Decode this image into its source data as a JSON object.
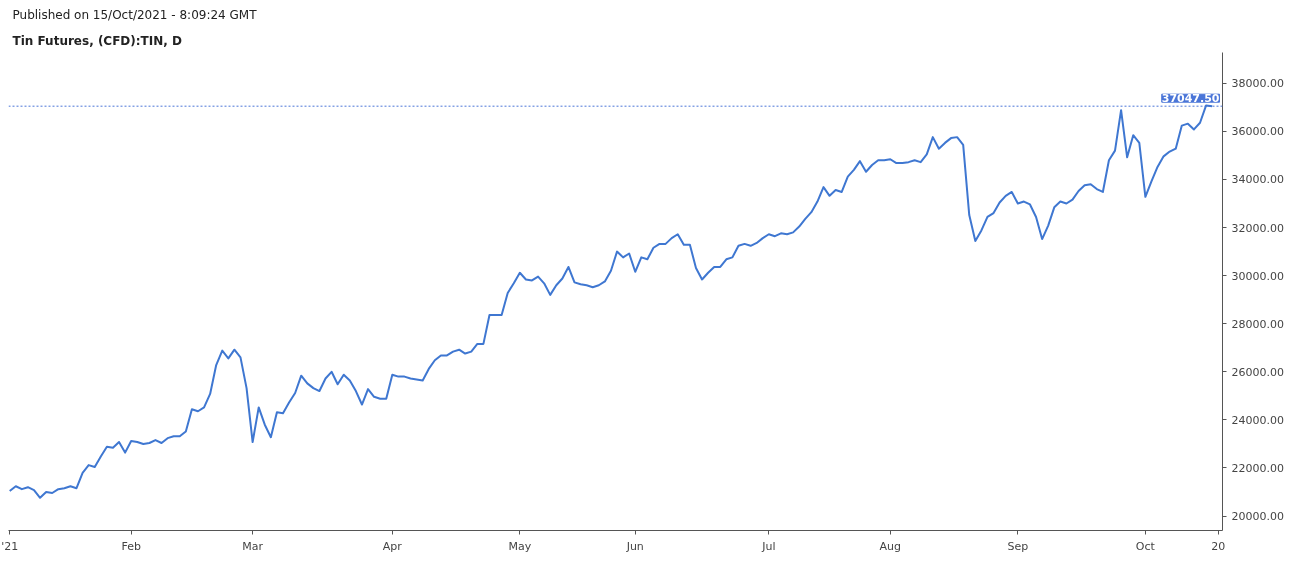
{
  "chart_data": {
    "type": "line",
    "title": "Tin Futures, (CFD):TIN, D",
    "subtitle": "Published on 15/Oct/2021 - 8:09:24 GMT",
    "categories": [
      "'21",
      null,
      null,
      null,
      null,
      null,
      null,
      null,
      null,
      null,
      null,
      null,
      null,
      null,
      null,
      null,
      null,
      null,
      null,
      null,
      "Feb",
      null,
      null,
      null,
      null,
      null,
      null,
      null,
      null,
      null,
      null,
      null,
      null,
      null,
      null,
      null,
      null,
      null,
      null,
      null,
      "Mar",
      null,
      null,
      null,
      null,
      null,
      null,
      null,
      null,
      null,
      null,
      null,
      null,
      null,
      null,
      null,
      null,
      null,
      null,
      null,
      null,
      null,
      null,
      "Apr",
      null,
      null,
      null,
      null,
      null,
      null,
      null,
      null,
      null,
      null,
      null,
      null,
      null,
      null,
      null,
      null,
      null,
      null,
      null,
      null,
      "May",
      null,
      null,
      null,
      null,
      null,
      null,
      null,
      null,
      null,
      null,
      null,
      null,
      null,
      null,
      null,
      null,
      null,
      null,
      "Jun",
      null,
      null,
      null,
      null,
      null,
      null,
      null,
      null,
      null,
      null,
      null,
      null,
      null,
      null,
      null,
      null,
      null,
      null,
      null,
      null,
      null,
      "Jul",
      null,
      null,
      null,
      null,
      null,
      null,
      null,
      null,
      null,
      null,
      null,
      null,
      null,
      null,
      null,
      null,
      null,
      null,
      null,
      "Aug",
      null,
      null,
      null,
      null,
      null,
      null,
      null,
      null,
      null,
      null,
      null,
      null,
      null,
      null,
      null,
      null,
      null,
      null,
      null,
      null,
      "Sep",
      null,
      null,
      null,
      null,
      null,
      null,
      null,
      null,
      null,
      null,
      null,
      null,
      null,
      null,
      null,
      null,
      null,
      null,
      null,
      null,
      "Oct",
      null,
      null,
      null,
      null,
      null,
      null,
      null,
      null,
      null,
      null,
      null,
      "20"
    ],
    "series": [
      {
        "color": "#3f77d1",
        "values": [
          21040,
          21240,
          21120,
          21200,
          21080,
          20760,
          21000,
          20960,
          21120,
          21160,
          21240,
          21160,
          21800,
          22120,
          22040,
          22480,
          22880,
          22840,
          23080,
          22640,
          23120,
          23080,
          23000,
          23040,
          23160,
          23040,
          23240,
          23320,
          23320,
          23520,
          24440,
          24360,
          24520,
          25080,
          26280,
          26880,
          26560,
          26920,
          26600,
          25320,
          23080,
          24520,
          23800,
          23280,
          24320,
          24280,
          24720,
          25120,
          25840,
          25520,
          25320,
          25200,
          25720,
          26000,
          25480,
          25880,
          25640,
          25200,
          24640,
          25280,
          24960,
          24880,
          24880,
          25880,
          25800,
          25800,
          25720,
          25680,
          25640,
          26120,
          26480,
          26680,
          26680,
          26840,
          26920,
          26760,
          26840,
          27160,
          27160,
          28360,
          28360,
          28360,
          29280,
          29680,
          30120,
          29840,
          29800,
          29960,
          29680,
          29200,
          29600,
          29880,
          30360,
          29720,
          29640,
          29600,
          29520,
          29600,
          29760,
          30200,
          31000,
          30760,
          30920,
          30160,
          30760,
          30680,
          31160,
          31320,
          31320,
          31560,
          31720,
          31280,
          31280,
          30320,
          29840,
          30120,
          30360,
          30360,
          30680,
          30760,
          31240,
          31320,
          31240,
          31360,
          31560,
          31720,
          31640,
          31760,
          31720,
          31800,
          32040,
          32360,
          32640,
          33080,
          33680,
          33320,
          33560,
          33480,
          34120,
          34400,
          34760,
          34320,
          34600,
          34800,
          34800,
          34840,
          34680,
          34680,
          34720,
          34800,
          34720,
          35040,
          35760,
          35280,
          35520,
          35720,
          35760,
          35440,
          32520,
          31440,
          31880,
          32440,
          32600,
          33040,
          33320,
          33480,
          33000,
          33080,
          32960,
          32440,
          31520,
          32080,
          32840,
          33080,
          33000,
          33160,
          33520,
          33760,
          33800,
          33600,
          33480,
          34800,
          35200,
          36880,
          34920,
          35840,
          35520,
          33280,
          33920,
          34520,
          34960,
          35160,
          35280,
          36240,
          36320,
          36080,
          36360,
          37080,
          37047.5,
          null
        ]
      }
    ],
    "ylim": [
      19400,
      39280
    ],
    "yticks": [
      {
        "value": 20000,
        "label": "20000.00"
      },
      {
        "value": 22000,
        "label": "22000.00"
      },
      {
        "value": 24000,
        "label": "24000.00"
      },
      {
        "value": 26000,
        "label": "26000.00"
      },
      {
        "value": 28000,
        "label": "28000.00"
      },
      {
        "value": 30000,
        "label": "30000.00"
      },
      {
        "value": 32000,
        "label": "32000.00"
      },
      {
        "value": 34000,
        "label": "34000.00"
      },
      {
        "value": 36000,
        "label": "36000.00"
      },
      {
        "value": 38000,
        "label": "38000.00"
      }
    ],
    "ref_lines": [
      {
        "axis": "y",
        "value": 37047.5,
        "label": "37047.50",
        "color": "#4a75d8",
        "line_style": "dotted"
      }
    ],
    "grid": false,
    "marker": "none",
    "line_style": "solid"
  }
}
